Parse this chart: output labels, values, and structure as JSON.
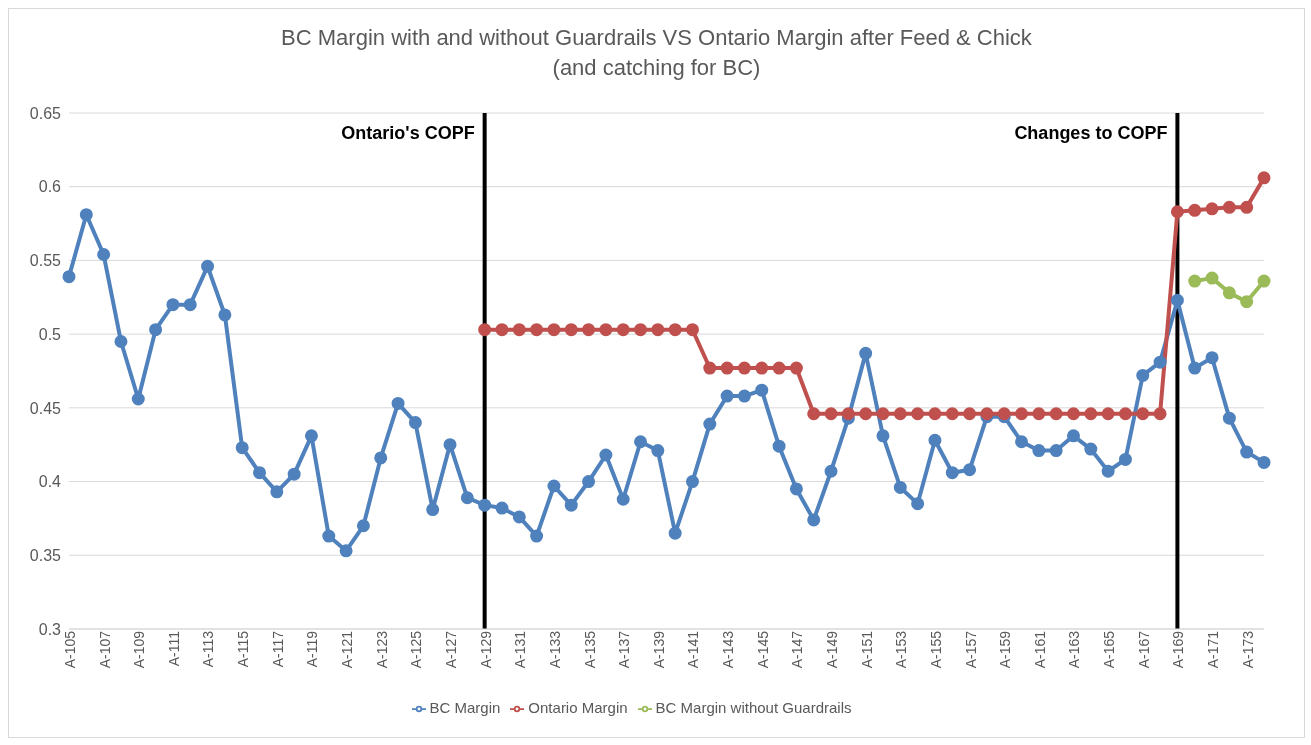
{
  "chart_data": {
    "type": "line",
    "title": "BC Margin with and without Guardrails VS Ontario Margin after Feed & Chick\n(and catching for BC)",
    "categories": [
      "A-105",
      null,
      "A-107",
      null,
      "A-109",
      null,
      "A-111",
      null,
      "A-113",
      null,
      "A-115",
      null,
      "A-117",
      null,
      "A-119",
      null,
      "A-121",
      null,
      "A-123",
      null,
      "A-125",
      null,
      "A-127",
      null,
      "A-129",
      null,
      "A-131",
      null,
      "A-133",
      null,
      "A-135",
      null,
      "A-137",
      null,
      "A-139",
      null,
      "A-141",
      null,
      "A-143",
      null,
      "A-145",
      null,
      "A-147",
      null,
      "A-149",
      null,
      "A-151",
      null,
      "A-153",
      null,
      "A-155",
      null,
      "A-157",
      null,
      "A-159",
      null,
      "A-161",
      null,
      "A-163",
      null,
      "A-165",
      null,
      "A-167",
      null,
      "A-169",
      null,
      "A-171",
      null,
      "A-173",
      null
    ],
    "series": [
      {
        "name": "BC Margin",
        "color": "#4f81bd",
        "values": [
          0.539,
          0.581,
          0.554,
          0.495,
          0.456,
          0.503,
          0.52,
          0.52,
          0.546,
          0.513,
          0.423,
          0.406,
          0.393,
          0.405,
          0.431,
          0.363,
          0.353,
          0.37,
          0.416,
          0.453,
          0.44,
          0.381,
          0.425,
          0.389,
          0.384,
          0.382,
          0.376,
          0.363,
          0.397,
          0.384,
          0.4,
          0.418,
          0.388,
          0.427,
          0.421,
          0.365,
          0.4,
          0.439,
          0.458,
          0.458,
          0.462,
          0.424,
          0.395,
          0.374,
          0.407,
          0.443,
          0.487,
          0.431,
          0.396,
          0.385,
          0.428,
          0.406,
          0.408,
          0.444,
          0.444,
          0.427,
          0.421,
          0.421,
          0.431,
          0.422,
          0.407,
          0.415,
          0.472,
          0.481,
          0.523,
          0.477,
          0.484,
          0.443,
          0.42,
          0.413
        ]
      },
      {
        "name": "Ontario Margin",
        "color": "#c0504d",
        "values": [
          null,
          null,
          null,
          null,
          null,
          null,
          null,
          null,
          null,
          null,
          null,
          null,
          null,
          null,
          null,
          null,
          null,
          null,
          null,
          null,
          null,
          null,
          null,
          null,
          0.503,
          0.503,
          0.503,
          0.503,
          0.503,
          0.503,
          0.503,
          0.503,
          0.503,
          0.503,
          0.503,
          0.503,
          0.503,
          0.477,
          0.477,
          0.477,
          0.477,
          0.477,
          0.477,
          0.446,
          0.446,
          0.446,
          0.446,
          0.446,
          0.446,
          0.446,
          0.446,
          0.446,
          0.446,
          0.446,
          0.446,
          0.446,
          0.446,
          0.446,
          0.446,
          0.446,
          0.446,
          0.446,
          0.446,
          0.446,
          0.583,
          0.584,
          0.585,
          0.586,
          0.586,
          0.606
        ]
      },
      {
        "name": "BC Margin without Guardrails",
        "color": "#9bbb59",
        "values": [
          null,
          null,
          null,
          null,
          null,
          null,
          null,
          null,
          null,
          null,
          null,
          null,
          null,
          null,
          null,
          null,
          null,
          null,
          null,
          null,
          null,
          null,
          null,
          null,
          null,
          null,
          null,
          null,
          null,
          null,
          null,
          null,
          null,
          null,
          null,
          null,
          null,
          null,
          null,
          null,
          null,
          null,
          null,
          null,
          null,
          null,
          null,
          null,
          null,
          null,
          null,
          null,
          null,
          null,
          null,
          null,
          null,
          null,
          null,
          null,
          null,
          null,
          null,
          null,
          null,
          0.536,
          0.538,
          0.528,
          0.522,
          0.536
        ]
      }
    ],
    "ylim": [
      0.3,
      0.65
    ],
    "yticks": [
      0.3,
      0.35,
      0.4,
      0.45,
      0.5,
      0.55,
      0.6,
      0.65
    ],
    "ref_lines": [
      {
        "axis": "x",
        "value": "A-129",
        "label": "Ontario's COPF",
        "color": "#000000"
      },
      {
        "axis": "x",
        "value": "A-169",
        "label": "Changes to COPF",
        "color": "#000000"
      }
    ],
    "grid": "y",
    "legend": "bottom",
    "marker": "circle",
    "line_style": "solid"
  }
}
